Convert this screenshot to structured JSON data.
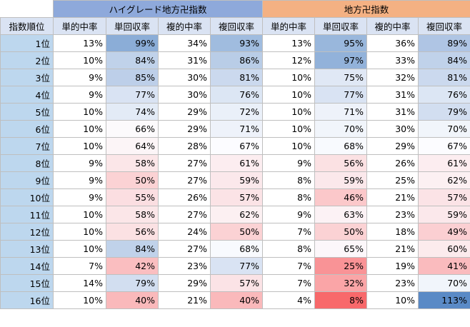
{
  "title": "",
  "groups": [
    "ハイグレード地方卍指数",
    "地方卍指数"
  ],
  "columns": [
    "指数順位",
    "単的中率",
    "単回収率",
    "複的中率",
    "複回収率",
    "単的中率",
    "単回収率",
    "複的中率",
    "複回収率"
  ],
  "rows": [
    {
      "rank": "1位",
      "values": [
        "13%",
        "99%",
        "34%",
        "93%",
        "13%",
        "95%",
        "36%",
        "89%"
      ]
    },
    {
      "rank": "2位",
      "values": [
        "10%",
        "84%",
        "31%",
        "86%",
        "12%",
        "97%",
        "33%",
        "84%"
      ]
    },
    {
      "rank": "3位",
      "values": [
        "9%",
        "85%",
        "30%",
        "81%",
        "10%",
        "75%",
        "32%",
        "81%"
      ]
    },
    {
      "rank": "4位",
      "values": [
        "9%",
        "77%",
        "30%",
        "76%",
        "10%",
        "77%",
        "31%",
        "76%"
      ]
    },
    {
      "rank": "5位",
      "values": [
        "10%",
        "74%",
        "29%",
        "72%",
        "10%",
        "71%",
        "31%",
        "79%"
      ]
    },
    {
      "rank": "6位",
      "values": [
        "10%",
        "66%",
        "29%",
        "71%",
        "10%",
        "70%",
        "30%",
        "70%"
      ]
    },
    {
      "rank": "7位",
      "values": [
        "10%",
        "64%",
        "28%",
        "67%",
        "10%",
        "68%",
        "29%",
        "67%"
      ]
    },
    {
      "rank": "8位",
      "values": [
        "9%",
        "58%",
        "27%",
        "61%",
        "9%",
        "56%",
        "26%",
        "61%"
      ]
    },
    {
      "rank": "9位",
      "values": [
        "9%",
        "50%",
        "27%",
        "59%",
        "8%",
        "59%",
        "25%",
        "62%"
      ]
    },
    {
      "rank": "10位",
      "values": [
        "9%",
        "55%",
        "26%",
        "57%",
        "8%",
        "46%",
        "21%",
        "57%"
      ]
    },
    {
      "rank": "11位",
      "values": [
        "10%",
        "58%",
        "27%",
        "62%",
        "9%",
        "63%",
        "23%",
        "59%"
      ]
    },
    {
      "rank": "12位",
      "values": [
        "10%",
        "56%",
        "24%",
        "50%",
        "7%",
        "50%",
        "18%",
        "49%"
      ]
    },
    {
      "rank": "13位",
      "values": [
        "10%",
        "84%",
        "27%",
        "68%",
        "8%",
        "65%",
        "21%",
        "60%"
      ]
    },
    {
      "rank": "14位",
      "values": [
        "7%",
        "42%",
        "23%",
        "77%",
        "7%",
        "25%",
        "19%",
        "41%"
      ]
    },
    {
      "rank": "15位",
      "values": [
        "14%",
        "79%",
        "29%",
        "57%",
        "7%",
        "32%",
        "23%",
        "70%"
      ]
    },
    {
      "rank": "16位",
      "values": [
        "10%",
        "40%",
        "21%",
        "40%",
        "4%",
        "8%",
        "10%",
        "113%"
      ]
    }
  ],
  "colors": {
    "group1_header": "#8ea9db",
    "group2_header": "#f4b183",
    "column_header": "#dae3f3",
    "rank_column": "#bdd7ee",
    "scale_high": "#5a8ac6",
    "scale_mid": "#fcfcff",
    "scale_low": "#f8696b"
  }
}
